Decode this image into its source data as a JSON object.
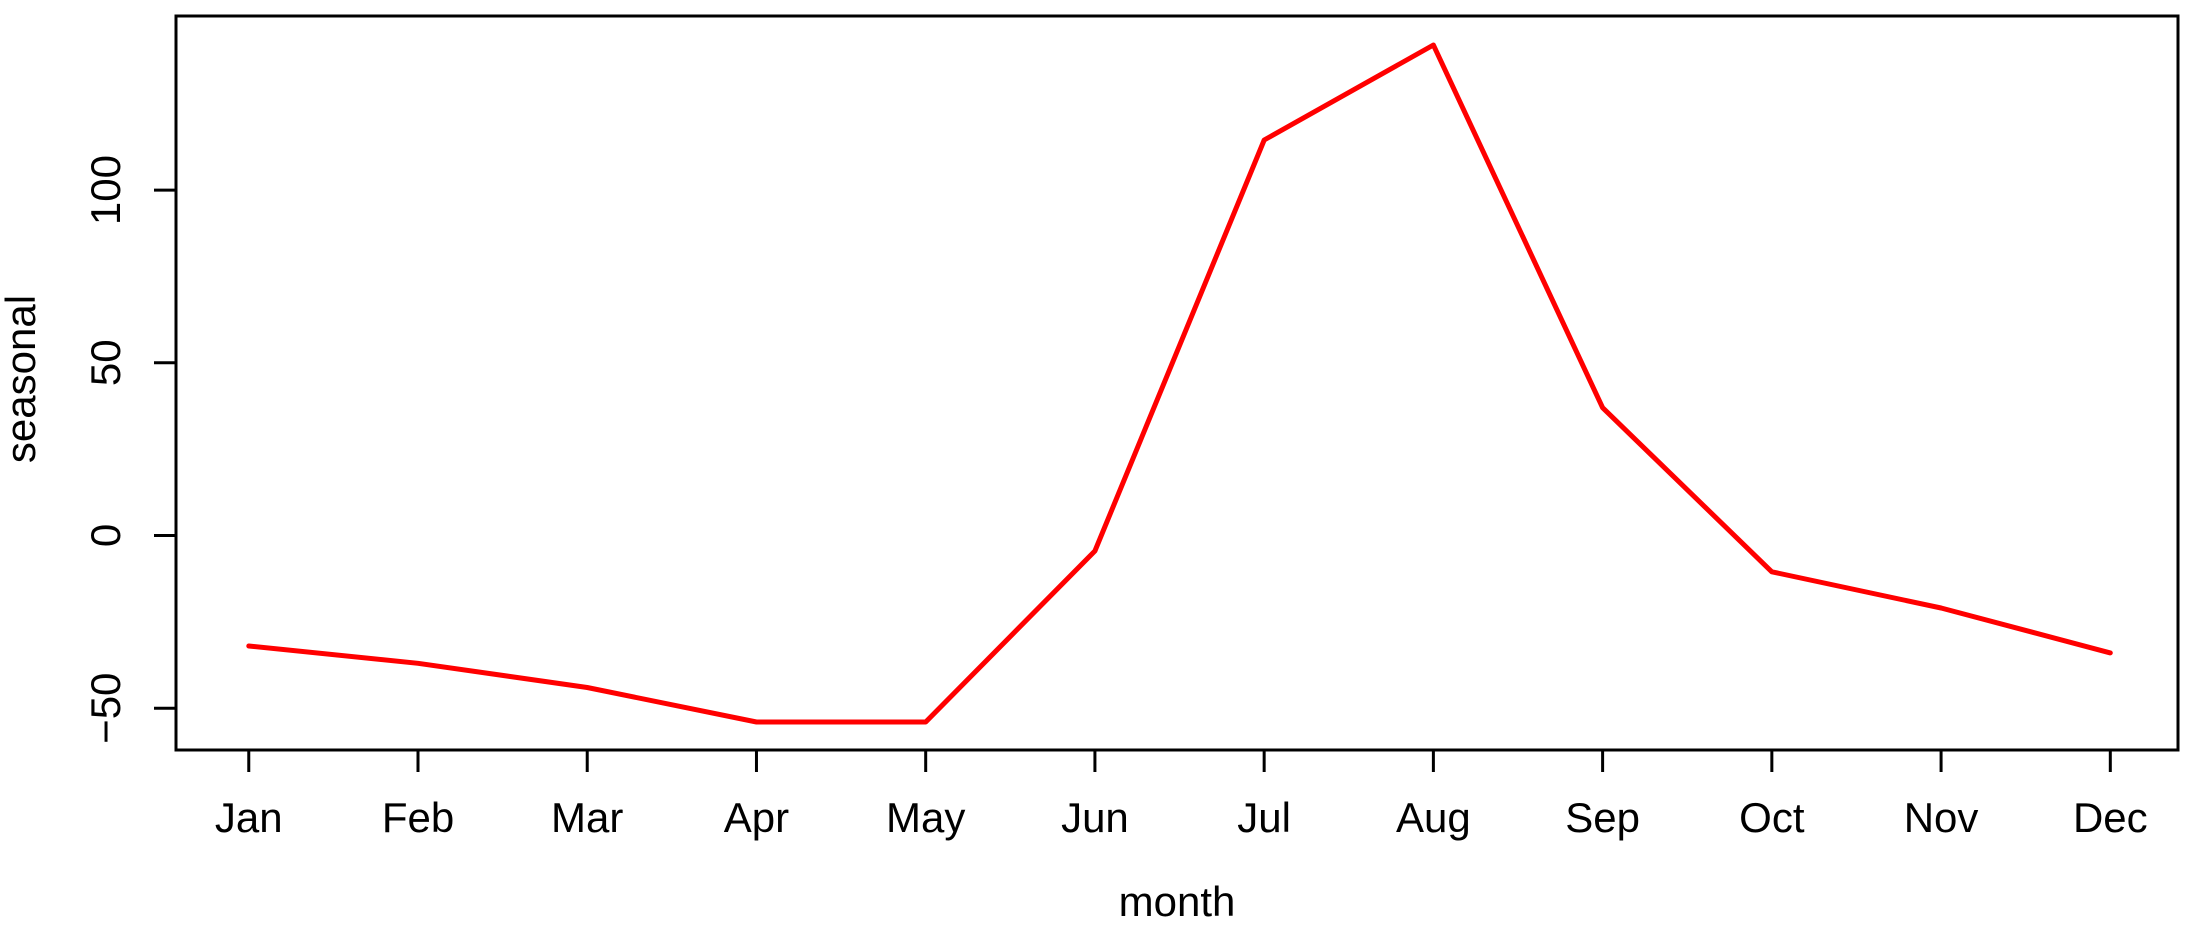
{
  "figure": {
    "background": "#ffffff",
    "axis_color": "#000000",
    "text_color": "#000000"
  },
  "chart_data": {
    "type": "line",
    "title": "",
    "xlabel": "month",
    "ylabel": "seasonal",
    "categories": [
      "Jan",
      "Feb",
      "Mar",
      "Apr",
      "May",
      "Jun",
      "Jul",
      "Aug",
      "Sep",
      "Oct",
      "Nov",
      "Dec"
    ],
    "x": [
      1,
      2,
      3,
      4,
      5,
      6,
      7,
      8,
      9,
      10,
      11,
      12
    ],
    "values": [
      -32,
      -37,
      -44,
      -54,
      -54,
      -4.5,
      114.5,
      142,
      37,
      -10.5,
      -21,
      -34
    ],
    "series_name": "seasonal",
    "line_color": "#ff0000",
    "xlim": [
      0.57,
      12.4
    ],
    "ylim": [
      -62.1,
      150.4
    ],
    "yticks": [
      -50,
      0,
      50,
      100
    ],
    "ytick_labels": [
      "−50",
      "0",
      "50",
      "100"
    ],
    "grid": false,
    "legend": "none"
  }
}
